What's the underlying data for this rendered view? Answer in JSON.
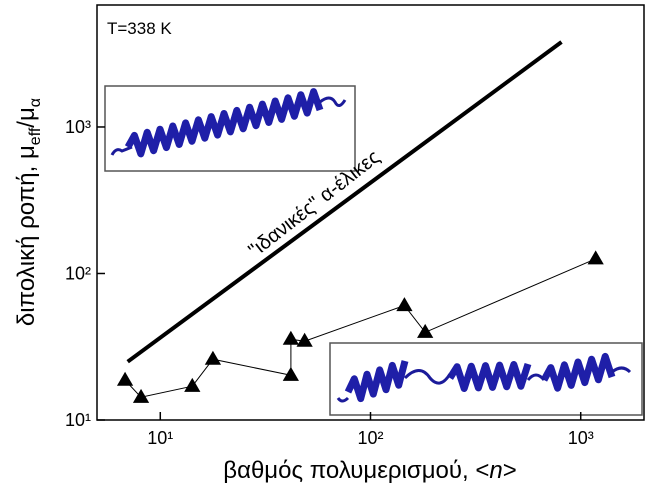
{
  "chart_data": {
    "type": "loglog",
    "xlog": true,
    "ylog": true,
    "xlim": [
      5,
      2000
    ],
    "ylim": [
      10,
      6800
    ],
    "xticks": [
      {
        "value": 10,
        "label": "10¹"
      },
      {
        "value": 100,
        "label": "10²"
      },
      {
        "value": 1000,
        "label": "10³"
      }
    ],
    "yticks": [
      {
        "value": 10,
        "label": "10¹"
      },
      {
        "value": 100,
        "label": "10²"
      },
      {
        "value": 1000,
        "label": "10³"
      }
    ],
    "xlabel": [
      "βαθμός πολυμερισμού, <",
      "n",
      ">"
    ],
    "ylabel": [
      "διπολική ροπή, μ",
      "eff",
      "/μ",
      "α"
    ],
    "annotations": [
      "T=338 K",
      "\"ιδανικές\" α-έλικες"
    ],
    "series": [
      {
        "kind": "line",
        "color": "#000000",
        "x": [
          7,
          810
        ],
        "values": [
          25,
          3800
        ]
      },
      {
        "kind": "points",
        "color": "#000000",
        "x": [
          6.8,
          8.1,
          14.2,
          17.8,
          41.8,
          41.8,
          48.6,
          145,
          182,
          1178
        ],
        "values": [
          18.7,
          14.3,
          17.0,
          26,
          20.2,
          35.6,
          34.5,
          60.5,
          39.7,
          126
        ]
      }
    ]
  }
}
